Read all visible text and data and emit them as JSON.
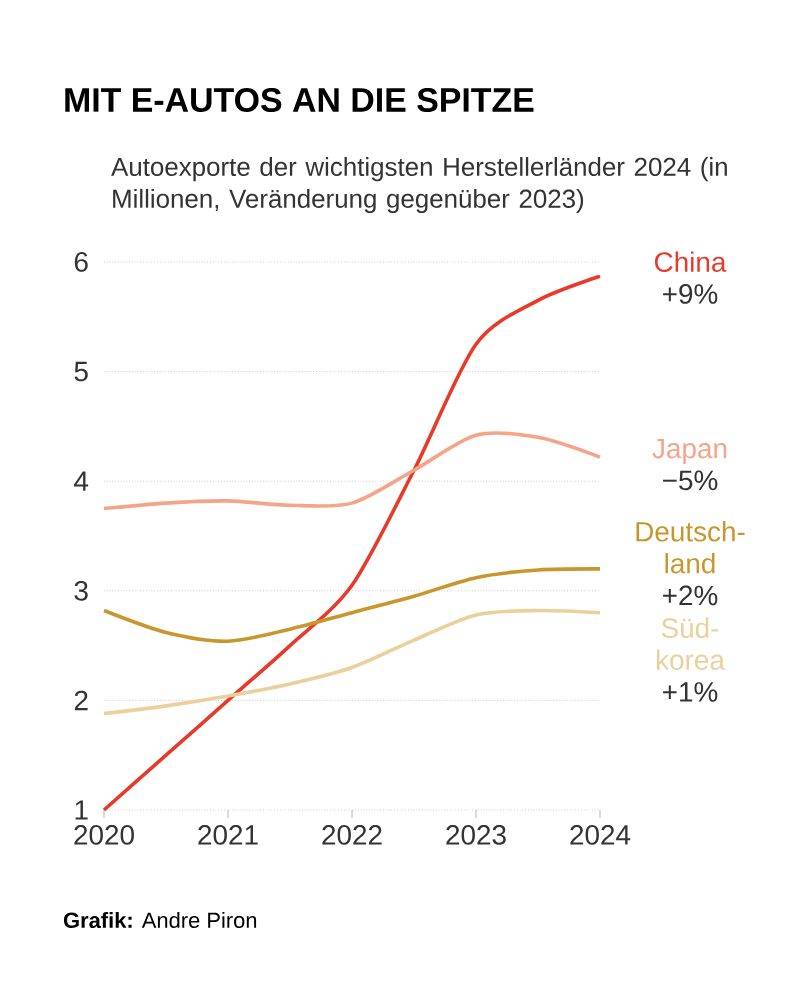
{
  "chart_data": {
    "type": "line",
    "title": "MIT E-AUTOS AN DIE SPITZE",
    "subtitle": "Autoexporte der wichtigsten Herstellerländer 2024 (in Millionen, Veränderung gegenüber 2023)",
    "x": [
      2020,
      2020.5,
      2021,
      2021.5,
      2022,
      2022.5,
      2023,
      2023.5,
      2024
    ],
    "series": [
      {
        "name": "China",
        "color": "#e8392a",
        "values": [
          1.0,
          1.5,
          2.0,
          2.5,
          3.05,
          4.1,
          5.25,
          5.65,
          5.87
        ]
      },
      {
        "name": "Japan",
        "color": "#f5a48a",
        "values": [
          3.75,
          3.8,
          3.82,
          3.78,
          3.8,
          4.1,
          4.42,
          4.4,
          4.22
        ]
      },
      {
        "name": "Deutsch-land",
        "color": "#c9962e",
        "values": [
          2.82,
          2.62,
          2.54,
          2.65,
          2.8,
          2.95,
          3.12,
          3.19,
          3.2
        ]
      },
      {
        "name": "Süd-korea",
        "color": "#ecd09c",
        "values": [
          1.88,
          1.95,
          2.04,
          2.15,
          2.3,
          2.55,
          2.78,
          2.82,
          2.8
        ]
      }
    ],
    "annotations": [
      "+9%",
      "−5%",
      "+2%",
      "+1%",
      "**Grafik:** Andre Piron"
    ],
    "xlim": [
      2020,
      2024
    ],
    "xticks": [
      2020,
      2021,
      2022,
      2023,
      2024
    ],
    "ylim": [
      1,
      6
    ],
    "yticks": [
      1,
      2,
      3,
      4,
      5,
      6
    ],
    "grid": "y",
    "marker": "none",
    "line_style": "solid"
  }
}
